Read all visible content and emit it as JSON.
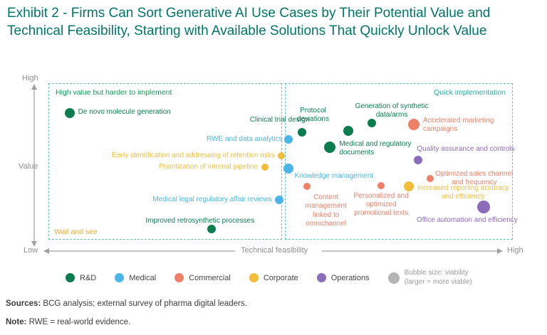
{
  "title": "Exhibit 2 - Firms Can Sort Generative AI Use Cases by Their Potential Value and Technical Feasibility, Starting with Available Solutions That Quickly Unlock Value",
  "colors": {
    "rd": "#0a7d4f",
    "medical": "#4ab6e8",
    "commercial": "#ef8068",
    "corporate": "#f3bd3a",
    "operations": "#8c6bbd",
    "gray": "#b5b5b5"
  },
  "axes": {
    "y_label": "Value",
    "y_high": "High",
    "low": "Low",
    "x_label": "Technical feasibility",
    "x_high": "High"
  },
  "quadrants": {
    "left": "High value but harder to implement",
    "right": "Quick implementation",
    "wait": "Wait and see"
  },
  "chart_data": {
    "type": "scatter",
    "x_axis": {
      "label": "Technical feasibility",
      "range": [
        0,
        100
      ]
    },
    "y_axis": {
      "label": "Value",
      "range": [
        0,
        100
      ]
    },
    "bubble_note": "Bubble size: viability (larger = more viable)",
    "points": [
      {
        "id": "de-novo-molecule-generation",
        "label": "De novo molecule generation",
        "category": "rd",
        "x": 5,
        "y": 81,
        "r": 7,
        "align": "left",
        "adx": 12,
        "ady": -7,
        "w": null
      },
      {
        "id": "clinical-trial-design",
        "label": "Clinical trial design",
        "category": "rd",
        "x": 55,
        "y": 69,
        "r": 6,
        "align": "right",
        "adx": 10,
        "ady": -23,
        "w": null
      },
      {
        "id": "protocol-deviations",
        "label": "Protocol deviations",
        "category": "rd",
        "x": 65,
        "y": 70,
        "r": 7,
        "align": "center",
        "adx": -50,
        "ady": -34,
        "w": 62
      },
      {
        "id": "generation-synthetic-data-arms",
        "label": "Generation of synthetic data/arms",
        "category": "rd",
        "x": 70,
        "y": 75,
        "r": 6,
        "align": "center",
        "adx": 28,
        "ady": -29,
        "w": 120
      },
      {
        "id": "accelerated-marketing-campaigns",
        "label": "Accelerated marketing campaigns",
        "category": "commercial",
        "x": 79,
        "y": 74,
        "r": 8,
        "align": "left",
        "adx": 13,
        "ady": -11,
        "w": 112
      },
      {
        "id": "rwe-data-analytics",
        "label": "RWE and data analytics",
        "category": "medical",
        "x": 52,
        "y": 65,
        "r": 6,
        "align": "right",
        "adx": -8,
        "ady": -6,
        "w": null
      },
      {
        "id": "medical-regulatory-documents",
        "label": "Medical and regulatory documents",
        "category": "rd",
        "x": 61,
        "y": 60,
        "r": 8,
        "align": "left",
        "adx": 13,
        "ady": -10,
        "w": 115
      },
      {
        "id": "quality-assurance-controls",
        "label": "Quality assurance and controls",
        "category": "operations",
        "x": 80,
        "y": 52,
        "r": 6,
        "align": "left",
        "adx": -2,
        "ady": -21,
        "w": null
      },
      {
        "id": "early-identification-retention-risks",
        "label": "Early identification and addressing of retention risks",
        "category": "corporate",
        "x": 50.5,
        "y": 55,
        "r": 5,
        "align": "right",
        "adx": -9,
        "ady": -6,
        "w": null
      },
      {
        "id": "prioritization-internal-pipeline",
        "label": "Prioritization of internal pipeline",
        "category": "corporate",
        "x": 47,
        "y": 48,
        "r": 5,
        "align": "right",
        "adx": -10,
        "ady": -6,
        "w": null
      },
      {
        "id": "knowledge-management",
        "label": "Knowledge management",
        "category": "medical",
        "x": 52,
        "y": 47,
        "r": 7,
        "align": "left",
        "adx": 9,
        "ady": 5,
        "w": null
      },
      {
        "id": "optimized-sales-channel-frequency",
        "label": "Optimized sales channel and frequency",
        "category": "commercial",
        "x": 82.5,
        "y": 41,
        "r": 5,
        "align": "center",
        "adx": 62,
        "ady": -12,
        "w": 112
      },
      {
        "id": "increased-reporting-accuracy-efficiency",
        "label": "Increased reporting accuracy and efficiency",
        "category": "corporate",
        "x": 78,
        "y": 36,
        "r": 7,
        "align": "center",
        "adx": 76,
        "ady": -3,
        "w": 132
      },
      {
        "id": "content-management-omnichannel",
        "label": "Content management linked to omnichannel",
        "category": "commercial",
        "x": 56,
        "y": 36,
        "r": 5,
        "align": "center",
        "adx": 27,
        "ady": 10,
        "w": 80
      },
      {
        "id": "personalized-promotional-texts",
        "label": "Personalized and optimized promotional texts",
        "category": "commercial",
        "x": 72,
        "y": 36.5,
        "r": 5,
        "align": "center",
        "adx": 0,
        "ady": 9,
        "w": 90
      },
      {
        "id": "medical-legal-regulatory-affair-reviews",
        "label": "Medical legal regulatory affair reviews",
        "category": "medical",
        "x": 50,
        "y": 28,
        "r": 6,
        "align": "right",
        "adx": -10,
        "ady": -6,
        "w": null
      },
      {
        "id": "improved-retrosynthetic-processes",
        "label": "Improved retrosynthetic processes",
        "category": "rd",
        "x": 35.5,
        "y": 10,
        "r": 6,
        "align": "center",
        "adx": -16,
        "ady": -17,
        "w": null
      },
      {
        "id": "office-automation-efficiency",
        "label": "Office automation and efficiency",
        "category": "operations",
        "x": 94,
        "y": 23.5,
        "r": 9,
        "align": "center",
        "adx": -23,
        "ady": 13,
        "w": null
      }
    ]
  },
  "legend": {
    "items": [
      {
        "id": "rd",
        "label": "R&D"
      },
      {
        "id": "medical",
        "label": "Medical"
      },
      {
        "id": "commercial",
        "label": "Commercial"
      },
      {
        "id": "corporate",
        "label": "Corporate"
      },
      {
        "id": "operations",
        "label": "Operations"
      }
    ],
    "bubble_size": {
      "id": "gray",
      "label": "Bubble size: viability\n(larger = more viable)"
    }
  },
  "footer": {
    "sources_label": "Sources:",
    "sources_text": " BCG analysis; external survey of pharma digital leaders.",
    "note_label": "Note:",
    "note_text": " RWE = real-world evidence."
  }
}
